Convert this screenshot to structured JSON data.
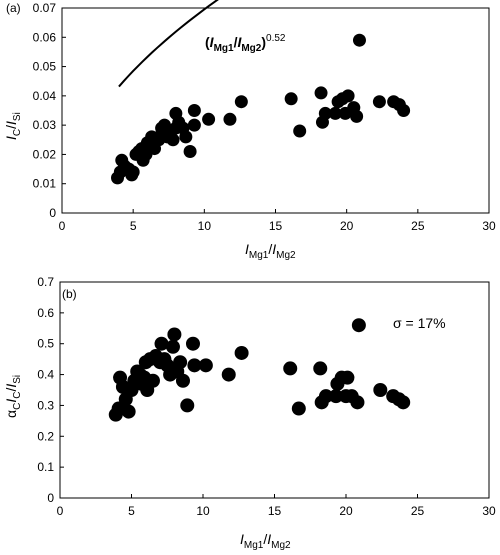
{
  "chart_data": [
    {
      "type": "scatter",
      "panel_label": "(a)",
      "annotation": "(Iₘₑ₁/Iₘₑ₂)^0.52",
      "annotation_parts": {
        "open": "(",
        "I1": "I",
        "sub1": "Mg1",
        "slash": "/",
        "I2": "I",
        "sub2": "Mg2",
        "close": ")",
        "exp": "0.52"
      },
      "xlabel_parts": {
        "I1": "I",
        "sub1": "Mg1",
        "slash": "/",
        "I2": "I",
        "sub2": "Mg2"
      },
      "ylabel_parts": {
        "I1": "I",
        "sub1": "C",
        "slash": "/",
        "I2": "I",
        "sub2": "Si"
      },
      "xlim": [
        0,
        30
      ],
      "ylim": [
        0,
        0.07
      ],
      "xticks": [
        "0",
        "5",
        "10",
        "15",
        "20",
        "25",
        "30"
      ],
      "yticks": [
        "0",
        "0.01",
        "0.02",
        "0.03",
        "0.04",
        "0.05",
        "0.06",
        "0.07"
      ],
      "points": [
        [
          3.9,
          0.012
        ],
        [
          4.1,
          0.014
        ],
        [
          4.2,
          0.018
        ],
        [
          4.4,
          0.016
        ],
        [
          4.7,
          0.015
        ],
        [
          4.9,
          0.013
        ],
        [
          5.0,
          0.014
        ],
        [
          5.2,
          0.02
        ],
        [
          5.4,
          0.021
        ],
        [
          5.6,
          0.022
        ],
        [
          5.7,
          0.018
        ],
        [
          5.9,
          0.02
        ],
        [
          6.0,
          0.024
        ],
        [
          6.1,
          0.022
        ],
        [
          6.3,
          0.026
        ],
        [
          6.5,
          0.022
        ],
        [
          6.8,
          0.025
        ],
        [
          7.0,
          0.029
        ],
        [
          7.0,
          0.027
        ],
        [
          7.2,
          0.03
        ],
        [
          7.4,
          0.026
        ],
        [
          7.6,
          0.028
        ],
        [
          7.8,
          0.025
        ],
        [
          8.0,
          0.034
        ],
        [
          8.0,
          0.029
        ],
        [
          8.2,
          0.031
        ],
        [
          8.5,
          0.029
        ],
        [
          8.7,
          0.026
        ],
        [
          9.0,
          0.021
        ],
        [
          9.3,
          0.03
        ],
        [
          9.3,
          0.035
        ],
        [
          10.3,
          0.032
        ],
        [
          11.8,
          0.032
        ],
        [
          12.6,
          0.038
        ],
        [
          16.1,
          0.039
        ],
        [
          16.7,
          0.028
        ],
        [
          18.2,
          0.041
        ],
        [
          18.3,
          0.031
        ],
        [
          18.5,
          0.034
        ],
        [
          19.2,
          0.034
        ],
        [
          19.4,
          0.038
        ],
        [
          19.7,
          0.039
        ],
        [
          19.9,
          0.034
        ],
        [
          20.1,
          0.04
        ],
        [
          20.5,
          0.036
        ],
        [
          20.7,
          0.033
        ],
        [
          20.9,
          0.059
        ],
        [
          22.3,
          0.038
        ],
        [
          23.3,
          0.038
        ],
        [
          23.7,
          0.037
        ],
        [
          24.0,
          0.035
        ]
      ],
      "fit_curve": {
        "expression": "0.0210 * x^0.52",
        "x_from": 4,
        "x_to": 24
      }
    },
    {
      "type": "scatter",
      "panel_label": "(b)",
      "annotation": "σ = 17%",
      "xlabel_parts": {
        "I1": "I",
        "sub1": "Mg1",
        "slash": "/",
        "I2": "I",
        "sub2": "Mg2"
      },
      "ylabel_parts": {
        "alpha": "α",
        "suba": "C",
        "I1": "I",
        "sub1": "C",
        "slash": "/",
        "I2": "I",
        "sub2": "Si"
      },
      "xlim": [
        0,
        30
      ],
      "ylim": [
        0,
        0.7
      ],
      "xticks": [
        "0",
        "5",
        "10",
        "15",
        "20",
        "25",
        "30"
      ],
      "yticks": [
        "0",
        "0.1",
        "0.2",
        "0.3",
        "0.4",
        "0.5",
        "0.6",
        "0.7"
      ],
      "points": [
        [
          3.9,
          0.27
        ],
        [
          4.1,
          0.29
        ],
        [
          4.2,
          0.39
        ],
        [
          4.4,
          0.36
        ],
        [
          4.6,
          0.32
        ],
        [
          4.8,
          0.28
        ],
        [
          5.0,
          0.35
        ],
        [
          5.2,
          0.38
        ],
        [
          5.4,
          0.41
        ],
        [
          5.6,
          0.4
        ],
        [
          5.7,
          0.37
        ],
        [
          5.9,
          0.39
        ],
        [
          6.0,
          0.44
        ],
        [
          6.1,
          0.35
        ],
        [
          6.3,
          0.45
        ],
        [
          6.5,
          0.38
        ],
        [
          6.7,
          0.46
        ],
        [
          7.0,
          0.44
        ],
        [
          7.1,
          0.5
        ],
        [
          7.3,
          0.45
        ],
        [
          7.5,
          0.43
        ],
        [
          7.7,
          0.4
        ],
        [
          7.9,
          0.49
        ],
        [
          8.0,
          0.53
        ],
        [
          8.2,
          0.41
        ],
        [
          8.4,
          0.44
        ],
        [
          8.6,
          0.38
        ],
        [
          8.9,
          0.3
        ],
        [
          9.3,
          0.5
        ],
        [
          9.4,
          0.43
        ],
        [
          10.2,
          0.43
        ],
        [
          11.8,
          0.4
        ],
        [
          12.7,
          0.47
        ],
        [
          16.1,
          0.42
        ],
        [
          16.7,
          0.29
        ],
        [
          18.2,
          0.42
        ],
        [
          18.3,
          0.31
        ],
        [
          18.6,
          0.33
        ],
        [
          19.3,
          0.33
        ],
        [
          19.4,
          0.37
        ],
        [
          19.7,
          0.39
        ],
        [
          20.0,
          0.33
        ],
        [
          20.1,
          0.39
        ],
        [
          20.4,
          0.33
        ],
        [
          20.8,
          0.31
        ],
        [
          20.9,
          0.56
        ],
        [
          22.4,
          0.35
        ],
        [
          23.3,
          0.33
        ],
        [
          23.7,
          0.32
        ],
        [
          24.0,
          0.31
        ]
      ]
    }
  ]
}
